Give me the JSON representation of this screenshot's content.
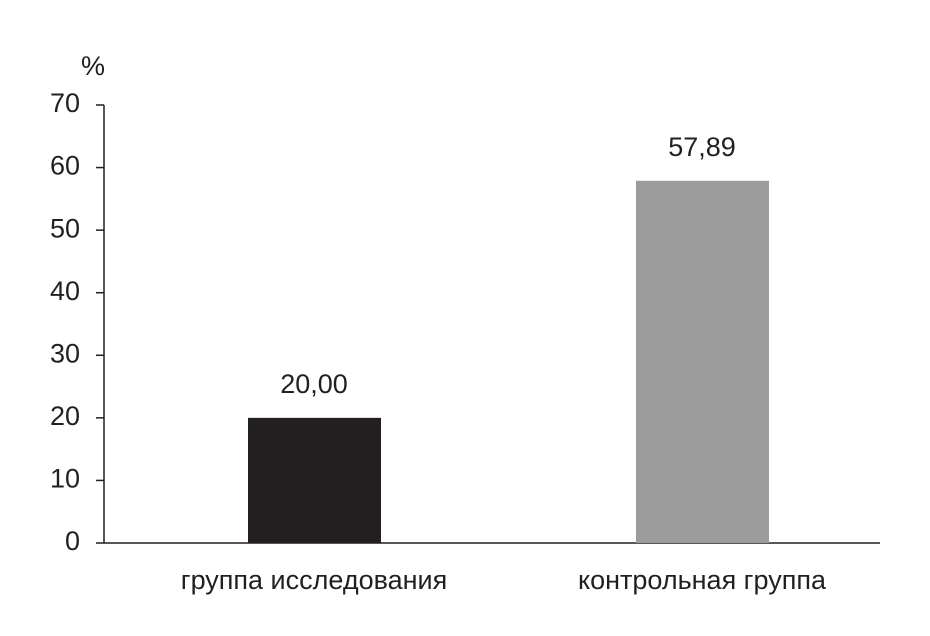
{
  "chart_data": {
    "type": "bar",
    "y_label": "%",
    "categories": [
      "группа исследования",
      "контрольная группа"
    ],
    "values": [
      20.0,
      57.89
    ],
    "value_labels": [
      "20,00",
      "57,89"
    ],
    "colors": [
      "#231f20",
      "#9d9c9c"
    ],
    "ylim": [
      0,
      70
    ],
    "yticks": [
      0,
      10,
      20,
      30,
      40,
      50,
      60,
      70
    ]
  }
}
